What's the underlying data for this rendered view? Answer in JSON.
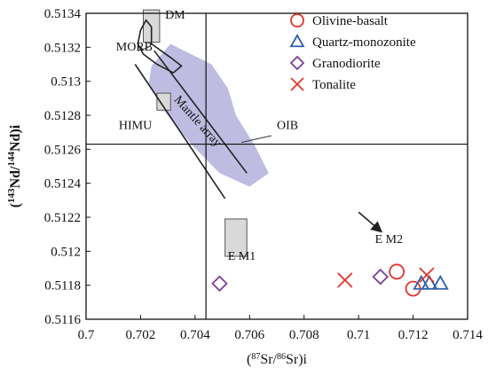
{
  "chart_data": {
    "type": "scatter",
    "xlabel": "(87Sr/86Sr)i",
    "ylabel": "(143Nd/144Nd)i",
    "xlim": [
      0.7,
      0.714
    ],
    "ylim": [
      0.5116,
      0.5134
    ],
    "xticks": [
      "0.7",
      "0.702",
      "0.704",
      "0.706",
      "0.708",
      "0.71",
      "0.712",
      "0.714"
    ],
    "yticks": [
      "0.5116",
      "0.5118",
      "0.512",
      "0.5122",
      "0.5124",
      "0.5126",
      "0.5128",
      "0.513",
      "0.5132",
      "0.5134"
    ],
    "legend_position": "top-right",
    "series": [
      {
        "name": "Olivine-basalt",
        "marker": "circle",
        "color": "#e0342a",
        "points": [
          [
            0.7114,
            0.51188
          ],
          [
            0.712,
            0.51178
          ]
        ]
      },
      {
        "name": "Quartz-monozonite",
        "marker": "triangle",
        "color": "#2f5fa8",
        "points": [
          [
            0.7123,
            0.51181
          ],
          [
            0.7126,
            0.51181
          ],
          [
            0.713,
            0.51181
          ]
        ]
      },
      {
        "name": "Granodiorite",
        "marker": "diamond",
        "color": "#7b3f98",
        "points": [
          [
            0.7049,
            0.51181
          ],
          [
            0.7108,
            0.51185
          ]
        ]
      },
      {
        "name": "Tonalite",
        "marker": "x",
        "color": "#e0342a",
        "points": [
          [
            0.7095,
            0.51183
          ],
          [
            0.7125,
            0.51186
          ]
        ]
      }
    ],
    "reference_lines": {
      "vertical_x": 0.7044,
      "horizontal_y": 0.51263
    },
    "annotations": [
      {
        "text": "DM",
        "x": 0.7029,
        "y": 0.51337
      },
      {
        "text": "MORB",
        "x": 0.7011,
        "y": 0.51318
      },
      {
        "text": "HIMU",
        "x": 0.7012,
        "y": 0.51272
      },
      {
        "text": "OIB",
        "x": 0.707,
        "y": 0.51272
      },
      {
        "text": "E M1",
        "x": 0.7052,
        "y": 0.51195
      },
      {
        "text": "E M2",
        "x": 0.7106,
        "y": 0.51205
      },
      {
        "text": "Mantle array",
        "x": 0.704,
        "y": 0.51275,
        "rotation": 48
      }
    ],
    "fields": {
      "dm_box": {
        "x": [
          0.7021,
          0.7027
        ],
        "y": [
          0.51323,
          0.51342
        ]
      },
      "himu_box": {
        "x": [
          0.7026,
          0.7031
        ],
        "y": [
          0.51283,
          0.51293
        ]
      },
      "em1_box": {
        "x": [
          0.7051,
          0.7059
        ],
        "y": [
          0.51197,
          0.51219
        ]
      },
      "oib_region": [
        [
          0.7024,
          0.51309
        ],
        [
          0.7031,
          0.51322
        ],
        [
          0.7046,
          0.5131
        ],
        [
          0.7052,
          0.51296
        ],
        [
          0.7055,
          0.5128
        ],
        [
          0.7062,
          0.51262
        ],
        [
          0.7067,
          0.51246
        ],
        [
          0.706,
          0.51238
        ],
        [
          0.7049,
          0.51246
        ],
        [
          0.7038,
          0.51264
        ],
        [
          0.7029,
          0.51282
        ],
        [
          0.7023,
          0.51298
        ]
      ],
      "morb_loop": [
        [
          0.7022,
          0.51336
        ],
        [
          0.7024,
          0.51332
        ],
        [
          0.7024,
          0.51322
        ],
        [
          0.7031,
          0.51314
        ],
        [
          0.7035,
          0.51309
        ],
        [
          0.7032,
          0.51305
        ],
        [
          0.7026,
          0.5131
        ],
        [
          0.7021,
          0.51316
        ],
        [
          0.7019,
          0.51322
        ],
        [
          0.702,
          0.5133
        ]
      ],
      "mantle_array_upper": [
        [
          0.7025,
          0.51318
        ],
        [
          0.7059,
          0.51246
        ]
      ],
      "mantle_array_lower": [
        [
          0.7018,
          0.5131
        ],
        [
          0.7051,
          0.51231
        ]
      ],
      "em2_arrow": [
        [
          0.71,
          0.51223
        ],
        [
          0.7108,
          0.51212
        ]
      ]
    }
  }
}
